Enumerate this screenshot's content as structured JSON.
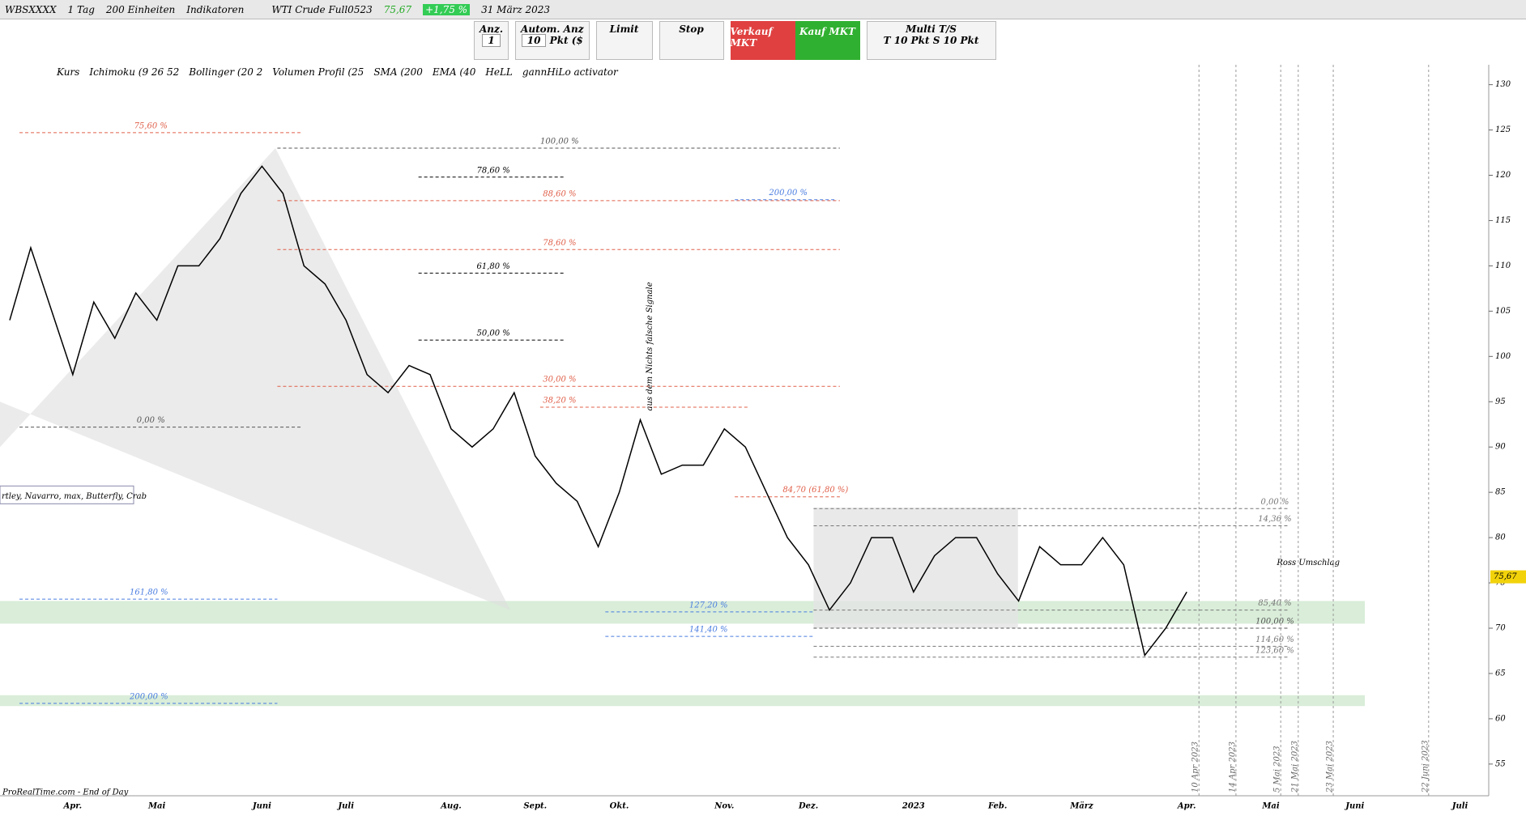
{
  "toolbar": {
    "instrument": "WBSXXXX",
    "timeframe": "1 Tag",
    "units": "200 Einheiten",
    "indicators": "Indikatoren",
    "symbol": "WTI Crude Full0523",
    "price": "75,67",
    "change": "+1,75 %",
    "date": "31 März 2023"
  },
  "order_panel": {
    "qty_label": "Anz.",
    "qty": "1",
    "auto_label": "Autom. Anz",
    "auto_qty": "10",
    "auto_unit": "Pkt ($",
    "limit": "Limit",
    "stop": "Stop",
    "sell": "Verkauf MKT",
    "buy": "Kauf MKT",
    "multi": "Multi T/S",
    "t_label": "T",
    "t_value": "10",
    "t_unit": "Pkt",
    "s_label": "S",
    "s_value": "10",
    "s_unit": "Pkt"
  },
  "indicator_bar": [
    "Kurs",
    "Ichimoku (9 26 52",
    "Bollinger (20 2",
    "Volumen Profil (25",
    "SMA (200",
    "EMA (40",
    "HeLL",
    "gannHiLo activator"
  ],
  "chart_data": {
    "type": "line",
    "categories": [
      null,
      null,
      null,
      "Apr.",
      null,
      null,
      null,
      "Mai",
      null,
      null,
      null,
      null,
      "Juni",
      null,
      null,
      null,
      "Juli",
      null,
      null,
      null,
      null,
      "Aug.",
      null,
      null,
      null,
      "Sept.",
      null,
      null,
      null,
      "Okt.",
      null,
      null,
      null,
      null,
      "Nov.",
      null,
      null,
      null,
      "Dez.",
      null,
      null,
      null,
      null,
      "2023",
      null,
      null,
      null,
      "Feb.",
      null,
      null,
      null,
      "März",
      null,
      null,
      null,
      null,
      "Apr.",
      null,
      null,
      null,
      "Mai",
      null,
      null,
      null,
      "Juni",
      null,
      null,
      null,
      null,
      "Juli"
    ],
    "series": [
      {
        "color": "#000000",
        "values": [
          104,
          112,
          105,
          98,
          106,
          102,
          107,
          104,
          110,
          110,
          113,
          118,
          121,
          118,
          110,
          108,
          104,
          98,
          96,
          99,
          98,
          92,
          90,
          92,
          96,
          89,
          86,
          84,
          79,
          85,
          93,
          87,
          88,
          88,
          92,
          90,
          85,
          80,
          77,
          72,
          75,
          80,
          80,
          74,
          78,
          80,
          80,
          76,
          73,
          79,
          77,
          77,
          80,
          77,
          67,
          70,
          74,
          null,
          null,
          null,
          null,
          null,
          null,
          null,
          null,
          null,
          null,
          null,
          null,
          null
        ]
      }
    ],
    "ylim": [
      51.5,
      132.2
    ],
    "yticks": [
      55,
      60,
      65,
      70,
      75,
      80,
      85,
      90,
      95,
      100,
      105,
      110,
      115,
      120,
      125,
      130
    ],
    "last_price": {
      "value": 75.67,
      "label": "75,67"
    },
    "zones": [
      {
        "from": 70.5,
        "to": 73.0,
        "color": "#cfe8cf"
      },
      {
        "from": 61.4,
        "to": 62.6,
        "color": "#cfe8cf"
      }
    ],
    "annotations": [
      {
        "text": "75,60 %",
        "y": 124.7,
        "color": "#e0604a"
      },
      {
        "text": "100,00 %",
        "y": 123.0,
        "color": "#555555"
      },
      {
        "text": "78,60 %",
        "y": 119.8,
        "color": "#000000"
      },
      {
        "text": "88,60 %",
        "y": 117.2,
        "color": "#e0604a"
      },
      {
        "text": "200,00 %",
        "y": 117.3,
        "color": "#4a7de0"
      },
      {
        "text": "78,60 %",
        "y": 111.8,
        "color": "#e0604a"
      },
      {
        "text": "61,80 %",
        "y": 109.2,
        "color": "#000000"
      },
      {
        "text": "50,00 %",
        "y": 101.8,
        "color": "#000000"
      },
      {
        "text": "30,00 %",
        "y": 96.7,
        "color": "#e0604a"
      },
      {
        "text": "38,20 %",
        "y": 94.4,
        "color": "#e0604a"
      },
      {
        "text": "0,00 %",
        "y": 92.2,
        "color": "#555555"
      },
      {
        "text": "84,70 (61,80 %)",
        "y": 84.5,
        "color": "#e0604a"
      },
      {
        "text": "161,80 %",
        "y": 73.2,
        "color": "#4a7de0"
      },
      {
        "text": "127,20 %",
        "y": 71.8,
        "color": "#4a7de0"
      },
      {
        "text": "141,40 %",
        "y": 69.1,
        "color": "#4a7de0"
      },
      {
        "text": "200,00 %",
        "y": 61.7,
        "color": "#4a7de0"
      },
      {
        "text": "0,00 %",
        "y": 83.2,
        "color": "#777777"
      },
      {
        "text": "14,36 %",
        "y": 81.3,
        "color": "#777777"
      },
      {
        "text": "85,40 %",
        "y": 72.0,
        "color": "#777777"
      },
      {
        "text": "100,00 %",
        "y": 70.0,
        "color": "#555555"
      },
      {
        "text": "114,60 %",
        "y": 68.0,
        "color": "#777777"
      },
      {
        "text": "123,60 %",
        "y": 66.8,
        "color": "#777777"
      }
    ],
    "notes": {
      "signals": "aus dem Nichts falsche Signale",
      "envelope": "Ross Umschlag",
      "patterns": "rtley, Navarro, max, Butterfly, Crab",
      "source": "ProRealTime.com - End of Day"
    },
    "date_markers": [
      "10 Apr 2023",
      "14 Apr 2023",
      "5 Mai 2023",
      "21 Mai 2023",
      "23 Mai 2023",
      "22 Juni 2023"
    ]
  }
}
